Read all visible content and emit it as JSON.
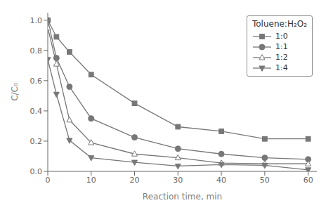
{
  "chart_data": {
    "type": "line",
    "x": [
      0,
      2,
      5,
      10,
      20,
      30,
      40,
      50,
      60
    ],
    "series": [
      {
        "name": "1:0",
        "color": "#777777",
        "marker": "square",
        "values": [
          1.0,
          0.89,
          0.79,
          0.64,
          0.45,
          0.295,
          0.265,
          0.215,
          0.215
        ]
      },
      {
        "name": "1:1",
        "color": "#777777",
        "marker": "circle",
        "values": [
          1.0,
          0.75,
          0.56,
          0.35,
          0.225,
          0.15,
          0.115,
          0.09,
          0.08
        ]
      },
      {
        "name": "1:2",
        "color": "#777777",
        "marker": "triangle-open",
        "values": [
          0.95,
          0.71,
          0.34,
          0.19,
          0.115,
          0.09,
          0.055,
          0.05,
          0.05
        ]
      },
      {
        "name": "1:4",
        "color": "#777777",
        "marker": "triangle-down",
        "values": [
          0.74,
          0.51,
          0.205,
          0.09,
          0.06,
          0.035,
          0.045,
          0.04,
          0.01
        ]
      }
    ],
    "xlabel": "Reaction time, min",
    "ylabel": "C/C₀",
    "legend_title": "Toluene:H₂O₂",
    "legend": "upper right",
    "grid": false,
    "xlim": [
      0,
      62
    ],
    "ylim": [
      0.0,
      1.05
    ],
    "xticks": [
      0,
      10,
      20,
      30,
      40,
      50,
      60
    ],
    "yticks": [
      {
        "value": 0,
        "label": "0.0"
      },
      0.2,
      0.4,
      0.6,
      0.8,
      {
        "value": 1,
        "label": "1.0"
      }
    ]
  }
}
